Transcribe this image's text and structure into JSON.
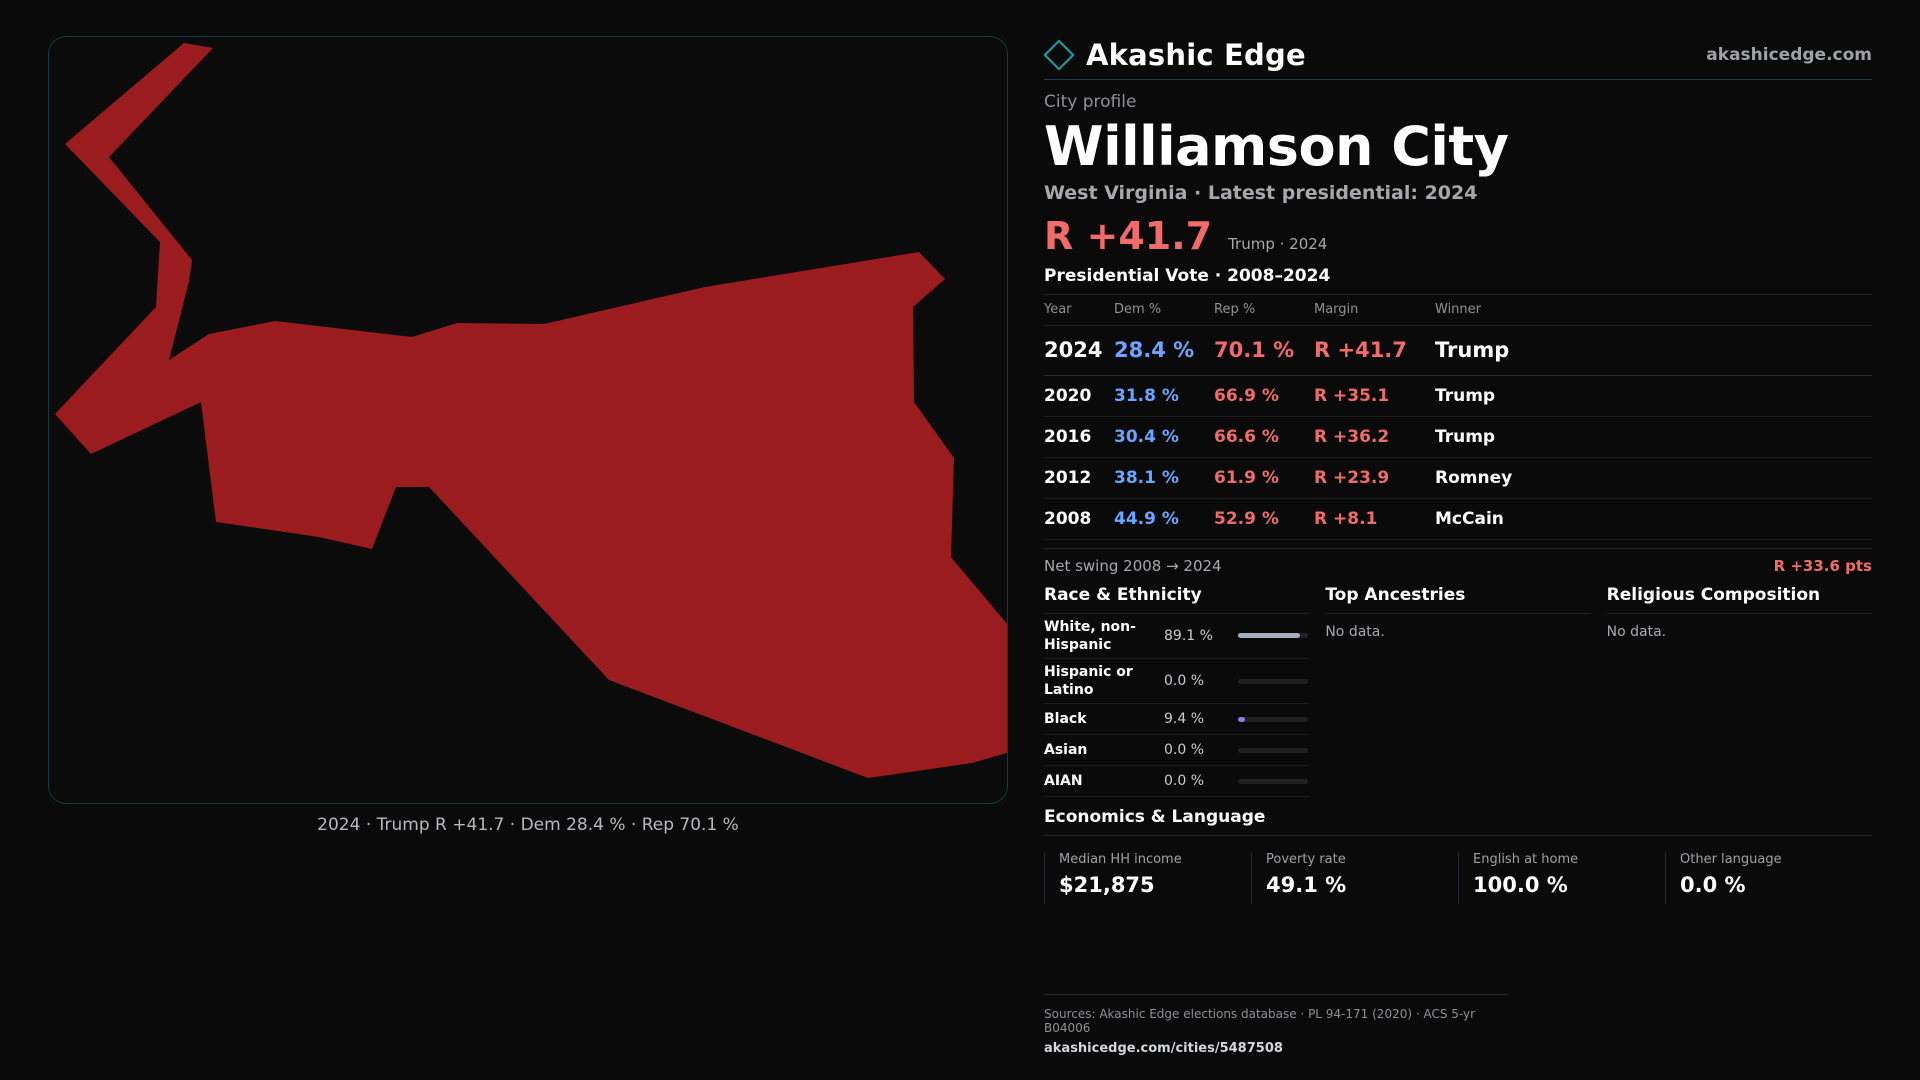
{
  "map": {
    "caption": "2024 · Trump R +41.7 · Dem 28.4 % · Rep 70.1 %",
    "fill_color": "#9b1c1f"
  },
  "header": {
    "brand": "Akashic Edge",
    "brand_icon": "diamond-icon",
    "site": "akashicedge.com"
  },
  "profile": {
    "eyebrow": "City profile",
    "title": "Williamson City",
    "subtitle": "West Virginia · Latest presidential: 2024",
    "margin": "R +41.7",
    "margin_note": "Trump · 2024"
  },
  "votes": {
    "title": "Presidential Vote · 2008–2024",
    "headers": {
      "year": "Year",
      "dem": "Dem %",
      "rep": "Rep %",
      "margin": "Margin",
      "winner": "Winner"
    },
    "rows": [
      {
        "year": "2024",
        "dem": "28.4 %",
        "rep": "70.1 %",
        "margin": "R +41.7",
        "winner": "Trump"
      },
      {
        "year": "2020",
        "dem": "31.8 %",
        "rep": "66.9 %",
        "margin": "R +35.1",
        "winner": "Trump"
      },
      {
        "year": "2016",
        "dem": "30.4 %",
        "rep": "66.6 %",
        "margin": "R +36.2",
        "winner": "Trump"
      },
      {
        "year": "2012",
        "dem": "38.1 %",
        "rep": "61.9 %",
        "margin": "R +23.9",
        "winner": "Romney"
      },
      {
        "year": "2008",
        "dem": "44.9 %",
        "rep": "52.9 %",
        "margin": "R +8.1",
        "winner": "McCain"
      }
    ],
    "swing_label": "Net swing 2008 → 2024",
    "swing_value": "R +33.6 pts"
  },
  "race": {
    "title": "Race & Ethnicity",
    "rows": [
      {
        "label": "White, non-Hispanic",
        "value": "89.1 %",
        "pct": 89.1,
        "color": "#a6adbd"
      },
      {
        "label": "Hispanic or Latino",
        "value": "0.0 %",
        "pct": 0.0,
        "color": "#a6adbd"
      },
      {
        "label": "Black",
        "value": "9.4 %",
        "pct": 9.4,
        "color": "#8a7de0"
      },
      {
        "label": "Asian",
        "value": "0.0 %",
        "pct": 0.0,
        "color": "#a6adbd"
      },
      {
        "label": "AIAN",
        "value": "0.0 %",
        "pct": 0.0,
        "color": "#a6adbd"
      }
    ]
  },
  "ancestries": {
    "title": "Top Ancestries",
    "empty": "No data."
  },
  "religion": {
    "title": "Religious Composition",
    "empty": "No data."
  },
  "economics": {
    "title": "Economics & Language",
    "cells": [
      {
        "label": "Median HH income",
        "value": "$21,875"
      },
      {
        "label": "Poverty rate",
        "value": "49.1 %"
      },
      {
        "label": "English at home",
        "value": "100.0 %"
      },
      {
        "label": "Other language",
        "value": "0.0 %"
      }
    ]
  },
  "footer": {
    "sources": "Sources: Akashic Edge elections database · PL 94-171 (2020) · ACS 5-yr B04006",
    "url": "akashicedge.com/cities/5487508"
  }
}
